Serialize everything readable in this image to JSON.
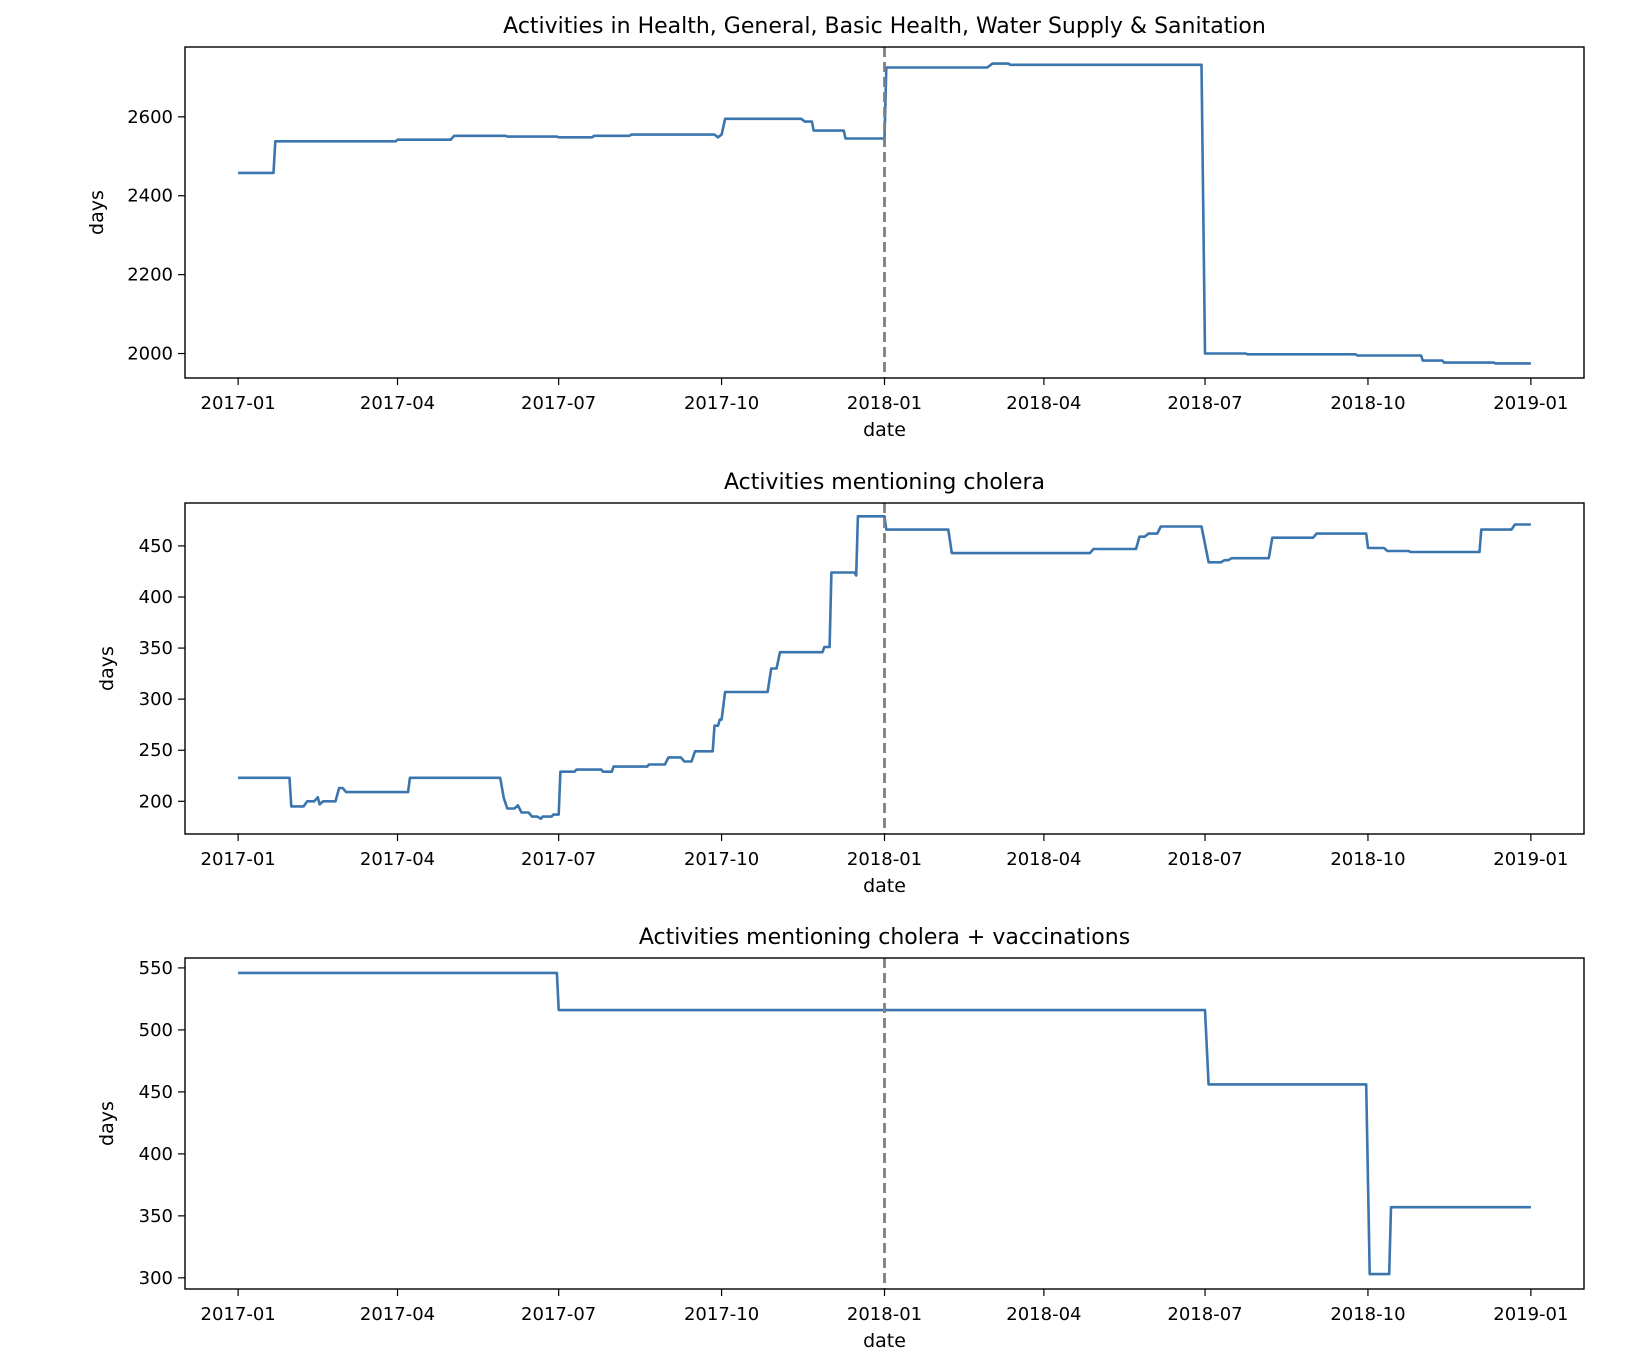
{
  "chart_data": [
    {
      "type": "line",
      "title": "Activities in Health, General, Basic Health, Water Supply & Sanitation",
      "xlabel": "date",
      "ylabel": "days",
      "xlim": [
        "2016-12-02",
        "2019-01-31"
      ],
      "ylim": [
        1938,
        2777
      ],
      "x_ticks": [
        "2017-01",
        "2017-04",
        "2017-07",
        "2017-10",
        "2018-01",
        "2018-04",
        "2018-07",
        "2018-10",
        "2019-01"
      ],
      "y_ticks": [
        2000,
        2200,
        2400,
        2600
      ],
      "reference_line_x": "2018-01-01",
      "series": [
        {
          "color": "#3a75ad",
          "points": [
            [
              "2017-01-01",
              2458
            ],
            [
              "2017-01-21",
              2458
            ],
            [
              "2017-01-22",
              2538
            ],
            [
              "2017-03-31",
              2538
            ],
            [
              "2017-04-01",
              2542
            ],
            [
              "2017-05-01",
              2542
            ],
            [
              "2017-05-03",
              2552
            ],
            [
              "2017-06-01",
              2552
            ],
            [
              "2017-06-02",
              2550
            ],
            [
              "2017-06-30",
              2550
            ],
            [
              "2017-07-01",
              2548
            ],
            [
              "2017-07-20",
              2548
            ],
            [
              "2017-07-21",
              2552
            ],
            [
              "2017-08-10",
              2552
            ],
            [
              "2017-08-11",
              2555
            ],
            [
              "2017-09-27",
              2555
            ],
            [
              "2017-09-29",
              2548
            ],
            [
              "2017-10-01",
              2555
            ],
            [
              "2017-10-03",
              2595
            ],
            [
              "2017-11-15",
              2595
            ],
            [
              "2017-11-17",
              2588
            ],
            [
              "2017-11-21",
              2588
            ],
            [
              "2017-11-22",
              2565
            ],
            [
              "2017-12-09",
              2565
            ],
            [
              "2017-12-10",
              2545
            ],
            [
              "2018-01-01",
              2545
            ],
            [
              "2018-01-02",
              2725
            ],
            [
              "2018-02-28",
              2725
            ],
            [
              "2018-03-03",
              2735
            ],
            [
              "2018-03-12",
              2735
            ],
            [
              "2018-03-13",
              2732
            ],
            [
              "2018-06-29",
              2732
            ],
            [
              "2018-07-01",
              2000
            ],
            [
              "2018-07-24",
              2000
            ],
            [
              "2018-07-25",
              1998
            ],
            [
              "2018-09-24",
              1998
            ],
            [
              "2018-09-25",
              1995
            ],
            [
              "2018-10-31",
              1995
            ],
            [
              "2018-11-01",
              1982
            ],
            [
              "2018-11-12",
              1982
            ],
            [
              "2018-11-13",
              1977
            ],
            [
              "2018-12-11",
              1977
            ],
            [
              "2018-12-12",
              1975
            ],
            [
              "2019-01-01",
              1975
            ]
          ]
        }
      ]
    },
    {
      "type": "line",
      "title": "Activities mentioning cholera",
      "xlabel": "date",
      "ylabel": "days",
      "xlim": [
        "2016-12-02",
        "2019-01-31"
      ],
      "ylim": [
        168,
        492
      ],
      "x_ticks": [
        "2017-01",
        "2017-04",
        "2017-07",
        "2017-10",
        "2018-01",
        "2018-04",
        "2018-07",
        "2018-10",
        "2019-01"
      ],
      "y_ticks": [
        200,
        250,
        300,
        350,
        400,
        450
      ],
      "reference_line_x": "2018-01-01",
      "series": [
        {
          "color": "#3a75ad",
          "points": [
            [
              "2017-01-01",
              223
            ],
            [
              "2017-01-30",
              223
            ],
            [
              "2017-01-31",
              195
            ],
            [
              "2017-02-07",
              195
            ],
            [
              "2017-02-09",
              200
            ],
            [
              "2017-02-13",
              200
            ],
            [
              "2017-02-15",
              204
            ],
            [
              "2017-02-16",
              197
            ],
            [
              "2017-02-18",
              200
            ],
            [
              "2017-02-25",
              200
            ],
            [
              "2017-02-27",
              213
            ],
            [
              "2017-03-01",
              213
            ],
            [
              "2017-03-03",
              209
            ],
            [
              "2017-04-07",
              209
            ],
            [
              "2017-04-08",
              223
            ],
            [
              "2017-05-29",
              223
            ],
            [
              "2017-05-31",
              203
            ],
            [
              "2017-06-02",
              193
            ],
            [
              "2017-06-06",
              193
            ],
            [
              "2017-06-08",
              196
            ],
            [
              "2017-06-10",
              189
            ],
            [
              "2017-06-14",
              189
            ],
            [
              "2017-06-16",
              185
            ],
            [
              "2017-06-19",
              185
            ],
            [
              "2017-06-21",
              183
            ],
            [
              "2017-06-22",
              185
            ],
            [
              "2017-06-26",
              185
            ],
            [
              "2017-06-27",
              185
            ],
            [
              "2017-06-28",
              187
            ],
            [
              "2017-07-01",
              187
            ],
            [
              "2017-07-02",
              229
            ],
            [
              "2017-07-10",
              229
            ],
            [
              "2017-07-11",
              231
            ],
            [
              "2017-07-25",
              231
            ],
            [
              "2017-07-26",
              229
            ],
            [
              "2017-07-31",
              229
            ],
            [
              "2017-08-01",
              234
            ],
            [
              "2017-08-20",
              234
            ],
            [
              "2017-08-21",
              236
            ],
            [
              "2017-08-30",
              236
            ],
            [
              "2017-09-01",
              243
            ],
            [
              "2017-09-08",
              243
            ],
            [
              "2017-09-10",
              239
            ],
            [
              "2017-09-14",
              239
            ],
            [
              "2017-09-16",
              249
            ],
            [
              "2017-09-26",
              249
            ],
            [
              "2017-09-27",
              274
            ],
            [
              "2017-09-29",
              274
            ],
            [
              "2017-09-30",
              280
            ],
            [
              "2017-10-01",
              280
            ],
            [
              "2017-10-03",
              307
            ],
            [
              "2017-10-27",
              307
            ],
            [
              "2017-10-29",
              330
            ],
            [
              "2017-11-01",
              330
            ],
            [
              "2017-11-03",
              346
            ],
            [
              "2017-11-27",
              346
            ],
            [
              "2017-11-28",
              351
            ],
            [
              "2017-12-01",
              351
            ],
            [
              "2017-12-02",
              424
            ],
            [
              "2017-12-15",
              424
            ],
            [
              "2017-12-16",
              421
            ],
            [
              "2017-12-17",
              479
            ],
            [
              "2018-01-01",
              479
            ],
            [
              "2018-01-02",
              466
            ],
            [
              "2018-02-06",
              466
            ],
            [
              "2018-02-08",
              443
            ],
            [
              "2018-04-27",
              443
            ],
            [
              "2018-04-29",
              447
            ],
            [
              "2018-05-23",
              447
            ],
            [
              "2018-05-25",
              459
            ],
            [
              "2018-05-28",
              459
            ],
            [
              "2018-05-30",
              462
            ],
            [
              "2018-06-04",
              462
            ],
            [
              "2018-06-06",
              469
            ],
            [
              "2018-06-29",
              469
            ],
            [
              "2018-07-03",
              434
            ],
            [
              "2018-07-10",
              434
            ],
            [
              "2018-07-12",
              436
            ],
            [
              "2018-07-14",
              436
            ],
            [
              "2018-07-16",
              438
            ],
            [
              "2018-08-04",
              438
            ],
            [
              "2018-08-06",
              438
            ],
            [
              "2018-08-08",
              458
            ],
            [
              "2018-08-31",
              458
            ],
            [
              "2018-09-02",
              462
            ],
            [
              "2018-09-30",
              462
            ],
            [
              "2018-10-01",
              448
            ],
            [
              "2018-10-10",
              448
            ],
            [
              "2018-10-12",
              445
            ],
            [
              "2018-10-24",
              445
            ],
            [
              "2018-10-25",
              444
            ],
            [
              "2018-12-03",
              444
            ],
            [
              "2018-12-04",
              466
            ],
            [
              "2018-12-21",
              466
            ],
            [
              "2018-12-23",
              471
            ],
            [
              "2019-01-01",
              471
            ]
          ]
        }
      ]
    },
    {
      "type": "line",
      "title": "Activities mentioning cholera + vaccinations",
      "xlabel": "date",
      "ylabel": "days",
      "xlim": [
        "2016-12-02",
        "2019-01-31"
      ],
      "ylim": [
        291,
        558
      ],
      "x_ticks": [
        "2017-01",
        "2017-04",
        "2017-07",
        "2017-10",
        "2018-01",
        "2018-04",
        "2018-07",
        "2018-10",
        "2019-01"
      ],
      "y_ticks": [
        300,
        350,
        400,
        450,
        500,
        550
      ],
      "reference_line_x": "2018-01-01",
      "series": [
        {
          "color": "#3a75ad",
          "points": [
            [
              "2017-01-01",
              546
            ],
            [
              "2017-06-30",
              546
            ],
            [
              "2017-07-01",
              516
            ],
            [
              "2018-07-01",
              516
            ],
            [
              "2018-07-03",
              456
            ],
            [
              "2018-09-30",
              456
            ],
            [
              "2018-10-02",
              303
            ],
            [
              "2018-10-13",
              303
            ],
            [
              "2018-10-14",
              357
            ],
            [
              "2019-01-01",
              357
            ]
          ]
        }
      ]
    }
  ],
  "style": {
    "line_color": "#3a75ad",
    "reference_color": "#7f7f7f"
  }
}
